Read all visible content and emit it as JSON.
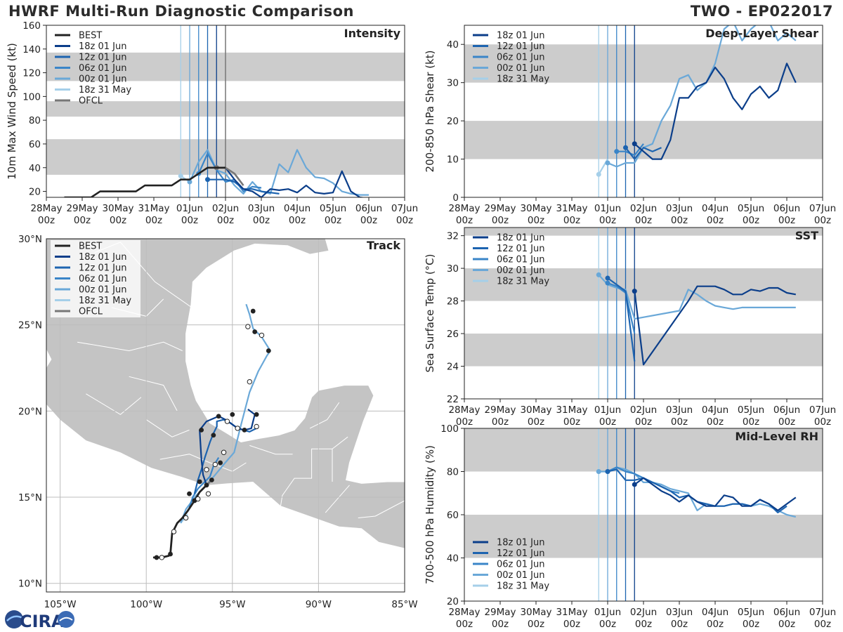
{
  "title_left": "HWRF Multi-Run Diagnostic Comparison",
  "title_right": "TWO - EP022017",
  "logo_text": "CIRA",
  "colors": {
    "best": "#222222",
    "ofcl": "#777777",
    "run_18z_01jun": "#0b3e8a",
    "run_12z_01jun": "#1d64b0",
    "run_06z_01jun": "#3a85c8",
    "run_00z_01jun": "#6aa8d8",
    "run_18z_31may": "#a5cfe9",
    "band": "#cccccc",
    "land": "#c4c4c4",
    "water": "#ffffff"
  },
  "date_ticks": [
    "28May\n00z",
    "29May\n00z",
    "30May\n00z",
    "31May\n00z",
    "01Jun\n00z",
    "02Jun\n00z",
    "03Jun\n00z",
    "04Jun\n00z",
    "05Jun\n00z",
    "06Jun\n00z",
    "07Jun\n00z"
  ],
  "run_init_days": [
    3.75,
    4.0,
    4.25,
    4.5,
    4.75
  ],
  "chart_data": [
    {
      "type": "line",
      "title": "Intensity",
      "ylabel": "10m Max Wind Speed (kt)",
      "xlabel": "",
      "ylim": [
        15,
        160
      ],
      "xlim": [
        0,
        10
      ],
      "yticks": [
        20,
        40,
        60,
        80,
        100,
        120,
        140,
        160
      ],
      "bands": [
        [
          34,
          64
        ],
        [
          83,
          96
        ],
        [
          113,
          137
        ]
      ],
      "legend": [
        "BEST",
        "18z 01 Jun",
        "12z 01 Jun",
        "06z 01 Jun",
        "00z 01 Jun",
        "18z 31 May",
        "OFCL"
      ],
      "series": [
        {
          "name": "BEST",
          "x": [
            0.5,
            0.75,
            1.0,
            1.25,
            1.5,
            1.75,
            2.0,
            2.25,
            2.5,
            2.75,
            3.0,
            3.25,
            3.5,
            3.75,
            4.0,
            4.25,
            4.5,
            4.75,
            5.0
          ],
          "y": [
            15,
            15,
            15,
            15,
            20,
            20,
            20,
            20,
            20,
            25,
            25,
            25,
            25,
            30,
            30,
            35,
            40,
            40,
            40
          ]
        },
        {
          "name": "OFCL",
          "x": [
            4.75,
            5.0,
            5.25,
            5.5
          ],
          "y": [
            40,
            40,
            35,
            25
          ]
        },
        {
          "name": "18z 01 Jun",
          "x": [
            4.75,
            5.0,
            5.25,
            5.5,
            5.75,
            6.0,
            6.25,
            6.5,
            6.75,
            7.0,
            7.25,
            7.5,
            7.75,
            8.0,
            8.25,
            8.5,
            8.75,
            9.0
          ],
          "y": [
            40,
            40,
            30,
            22,
            20,
            15,
            22,
            21,
            22,
            19,
            25,
            19,
            18,
            19,
            37,
            20,
            15,
            14
          ]
        },
        {
          "name": "12z 01 Jun",
          "x": [
            4.5,
            4.75,
            5.0,
            5.25,
            5.5,
            5.75,
            6.0,
            6.25,
            6.5
          ],
          "y": [
            30,
            30,
            30,
            28,
            22,
            22,
            20,
            19,
            18
          ]
        },
        {
          "name": "06z 01 Jun",
          "x": [
            4.25,
            4.5,
            4.75,
            5.0,
            5.25,
            5.5,
            5.75,
            6.0
          ],
          "y": [
            35,
            52,
            38,
            28,
            30,
            20,
            24,
            23
          ]
        },
        {
          "name": "00z 01 Jun",
          "x": [
            4.0,
            4.25,
            4.5,
            4.75,
            5.0,
            5.25,
            5.5,
            5.75,
            6.0,
            6.25,
            6.5,
            6.75,
            7.0,
            7.25,
            7.5,
            7.75,
            8.0,
            8.25,
            8.5,
            8.75,
            9.0
          ],
          "y": [
            28,
            45,
            55,
            38,
            35,
            25,
            18,
            28,
            20,
            18,
            43,
            36,
            55,
            40,
            32,
            31,
            27,
            20,
            18,
            17,
            17
          ]
        },
        {
          "name": "18z 31 May",
          "x": [
            3.75,
            4.0
          ],
          "y": [
            33,
            28
          ]
        }
      ]
    },
    {
      "type": "line",
      "title": "Deep-Layer Shear",
      "ylabel": "200-850 hPa Shear (kt)",
      "xlabel": "",
      "ylim": [
        0,
        45
      ],
      "xlim": [
        0,
        10
      ],
      "yticks": [
        0,
        10,
        20,
        30,
        40
      ],
      "bands": [
        [
          10,
          20
        ],
        [
          30,
          40
        ]
      ],
      "legend": [
        "18z 01 Jun",
        "12z 01 Jun",
        "06z 01 Jun",
        "00z 01 Jun",
        "18z 31 May"
      ],
      "series": [
        {
          "name": "18z 01 Jun",
          "x": [
            4.75,
            5.0,
            5.25,
            5.5,
            5.75,
            6.0,
            6.25,
            6.5,
            6.75,
            7.0,
            7.25,
            7.5,
            7.75,
            8.0,
            8.25,
            8.5,
            8.75,
            9.0,
            9.25
          ],
          "y": [
            14,
            12,
            10,
            10,
            15,
            26,
            26,
            29,
            30,
            34,
            31,
            26,
            23,
            27,
            29,
            26,
            28,
            35,
            30
          ]
        },
        {
          "name": "12z 01 Jun",
          "x": [
            4.5,
            4.75,
            5.0,
            5.25,
            5.5
          ],
          "y": [
            13,
            10,
            13,
            12,
            13
          ]
        },
        {
          "name": "06z 01 Jun",
          "x": [
            4.25,
            4.5,
            4.75,
            5.0
          ],
          "y": [
            12,
            12,
            11,
            14
          ]
        },
        {
          "name": "00z 01 Jun",
          "x": [
            4.0,
            4.25,
            4.5,
            4.75,
            5.0,
            5.25,
            5.5,
            5.75,
            6.0,
            6.25,
            6.5,
            6.75,
            7.0,
            7.25,
            7.5,
            7.75,
            8.0,
            8.25,
            8.5,
            8.75,
            9.0,
            9.25
          ],
          "y": [
            9,
            8,
            9,
            9,
            13,
            14,
            20,
            24,
            31,
            32,
            28,
            30,
            35,
            44,
            46,
            41,
            44,
            46,
            46,
            41,
            43,
            41
          ]
        },
        {
          "name": "18z 31 May",
          "x": [
            3.75,
            4.0
          ],
          "y": [
            6,
            10
          ]
        }
      ]
    },
    {
      "type": "line",
      "title": "SST",
      "ylabel": "Sea Surface Temp (°C)",
      "xlabel": "",
      "ylim": [
        22,
        32.5
      ],
      "xlim": [
        0,
        10
      ],
      "yticks": [
        22,
        24,
        26,
        28,
        30,
        32
      ],
      "bands": [
        [
          24,
          26
        ],
        [
          28,
          30
        ],
        [
          32,
          34
        ]
      ],
      "legend": [
        "18z 01 Jun",
        "12z 01 Jun",
        "06z 01 Jun",
        "00z 01 Jun",
        "18z 31 May"
      ],
      "series": [
        {
          "name": "18z 01 Jun",
          "x": [
            4.75,
            5.0,
            6.25,
            6.5,
            6.75,
            7.0,
            7.25,
            7.5,
            7.75,
            8.0,
            8.25,
            8.5,
            8.75,
            9.0,
            9.25
          ],
          "y": [
            28.6,
            24.1,
            28.0,
            28.9,
            28.9,
            28.9,
            28.7,
            28.4,
            28.4,
            28.7,
            28.6,
            28.8,
            28.8,
            28.5,
            28.4
          ]
        },
        {
          "name": "12z 01 Jun",
          "x": [
            4.0,
            4.25,
            4.5,
            4.75
          ],
          "y": [
            29.4,
            29.0,
            28.6,
            24.3
          ]
        },
        {
          "name": "06z 01 Jun",
          "x": [
            4.0,
            4.25,
            4.5,
            4.75
          ],
          "y": [
            29.1,
            28.9,
            28.5,
            26.0
          ]
        },
        {
          "name": "00z 01 Jun",
          "x": [
            3.75,
            4.0,
            4.25,
            4.5,
            4.75,
            6.0,
            6.25,
            6.5,
            6.75,
            7.0,
            7.25,
            7.5,
            7.75,
            8.0,
            8.25,
            8.5,
            8.75,
            9.0,
            9.25
          ],
          "y": [
            29.6,
            29.0,
            28.8,
            28.7,
            26.9,
            27.4,
            28.7,
            28.4,
            28.0,
            27.7,
            27.6,
            27.5,
            27.6,
            27.6,
            27.6,
            27.6,
            27.6,
            27.6,
            27.6
          ]
        },
        {
          "name": "18z 31 May",
          "x": [
            3.75
          ],
          "y": [
            29.6
          ]
        }
      ]
    },
    {
      "type": "line",
      "title": "Mid-Level RH",
      "ylabel": "700-500 hPa Humidity (%)",
      "xlabel": "",
      "ylim": [
        20,
        100
      ],
      "xlim": [
        0,
        10
      ],
      "yticks": [
        20,
        40,
        60,
        80,
        100
      ],
      "bands": [
        [
          40,
          60
        ],
        [
          80,
          100
        ]
      ],
      "legend": [
        "18z 01 Jun",
        "12z 01 Jun",
        "06z 01 Jun",
        "00z 01 Jun",
        "18z 31 May"
      ],
      "series": [
        {
          "name": "18z 01 Jun",
          "x": [
            4.75,
            5.0,
            5.25,
            5.5,
            5.75,
            6.0,
            6.25,
            6.5,
            6.75,
            7.0,
            7.25,
            7.5,
            7.75,
            8.0,
            8.25,
            8.5,
            8.75,
            9.0,
            9.25
          ],
          "y": [
            74,
            77,
            74,
            71,
            69,
            66,
            69,
            66,
            64,
            64,
            69,
            68,
            64,
            64,
            67,
            65,
            62,
            65,
            68
          ]
        },
        {
          "name": "12z 01 Jun",
          "x": [
            4.0,
            4.25,
            4.5,
            4.75,
            5.0,
            5.25,
            5.5,
            5.75,
            6.0,
            6.25,
            6.5,
            6.75,
            7.0,
            7.25,
            7.5,
            7.75,
            8.0,
            8.25,
            8.5,
            8.75,
            9.0
          ],
          "y": [
            80,
            81,
            76,
            76,
            77,
            75,
            73,
            71,
            68,
            69,
            66,
            65,
            64,
            64,
            65,
            65,
            64,
            67,
            65,
            61,
            64
          ]
        },
        {
          "name": "06z 01 Jun",
          "x": [
            4.0,
            4.25,
            4.5,
            4.75,
            5.0,
            5.25,
            5.5,
            5.75,
            6.0
          ],
          "y": [
            80,
            82,
            80,
            79,
            77,
            75,
            73,
            71,
            70
          ]
        },
        {
          "name": "00z 01 Jun",
          "x": [
            3.75,
            4.0,
            4.25,
            4.5,
            4.75,
            5.0,
            5.25,
            5.5,
            5.75,
            6.0,
            6.25,
            6.5,
            6.75,
            7.0,
            7.25,
            7.5,
            7.75,
            8.0,
            8.25,
            8.5,
            8.75,
            9.0,
            9.25
          ],
          "y": [
            80,
            80,
            82,
            81,
            79,
            75,
            75,
            74,
            72,
            71,
            70,
            62,
            65,
            64,
            64,
            65,
            65,
            64,
            65,
            64,
            62,
            60,
            59
          ]
        },
        {
          "name": "18z 31 May",
          "x": [
            3.75
          ],
          "y": [
            80
          ]
        }
      ]
    },
    {
      "type": "scatter",
      "title": "Track",
      "xlabel": "",
      "ylabel": "",
      "xlim": [
        -105.8,
        -85
      ],
      "ylim": [
        9.5,
        30
      ],
      "xticks": [
        [
          -105,
          "105°W"
        ],
        [
          -100,
          "100°W"
        ],
        [
          -95,
          "95°W"
        ],
        [
          -90,
          "90°W"
        ],
        [
          -85,
          "85°W"
        ]
      ],
      "yticks": [
        [
          10,
          "10°N"
        ],
        [
          15,
          "15°N"
        ],
        [
          20,
          "20°N"
        ],
        [
          25,
          "25°N"
        ],
        [
          30,
          "30°N"
        ]
      ],
      "legend": [
        "BEST",
        "18z 01 Jun",
        "12z 01 Jun",
        "06z 01 Jun",
        "00z 01 Jun",
        "18z 31 May",
        "OFCL"
      ],
      "series": [
        {
          "name": "BEST",
          "lon": [
            -99.6,
            -99.4,
            -99.1,
            -98.7,
            -98.6,
            -98.5,
            -98.2,
            -97.9,
            -97.6,
            -97.2,
            -96.9,
            -96.5
          ],
          "lat": [
            11.5,
            11.5,
            11.5,
            11.6,
            11.7,
            12.9,
            13.5,
            13.8,
            14.2,
            14.8,
            15.3,
            15.7
          ]
        },
        {
          "name": "OFCL",
          "lon": [
            -96.5,
            -96.3
          ],
          "lat": [
            15.7,
            15.9
          ]
        },
        {
          "name": "18z 01 Jun",
          "lon": [
            -96.5,
            -96.7,
            -96.8,
            -96.9,
            -96.5,
            -95.8,
            -95.4,
            -94.7,
            -94.3,
            -93.9,
            -93.7,
            -94.1
          ],
          "lat": [
            15.7,
            16.3,
            17.2,
            18.9,
            19.4,
            19.7,
            19.5,
            19.0,
            18.9,
            19.0,
            19.8,
            20.1
          ]
        },
        {
          "name": "12z 01 Jun",
          "lon": [
            -97.2,
            -97.0,
            -96.8,
            -96.6,
            -96.3,
            -96.1,
            -95.9,
            -95.9,
            -95.5,
            -95.1,
            -94.7,
            -94.0,
            -93.6,
            -93.6
          ],
          "lat": [
            15.2,
            16.0,
            16.6,
            17.3,
            18.2,
            18.7,
            19.1,
            19.4,
            19.5,
            19.3,
            19.0,
            18.8,
            19.0,
            19.1
          ]
        },
        {
          "name": "06z 01 Jun",
          "lon": [
            -97.5,
            -97.3,
            -97.0,
            -96.6,
            -96.3,
            -96.1,
            -95.8
          ],
          "lat": [
            14.4,
            15.0,
            15.5,
            15.9,
            16.2,
            16.8,
            17.3
          ]
        },
        {
          "name": "00z 01 Jun",
          "lon": [
            -98.0,
            -97.7,
            -97.1,
            -96.6,
            -96.0,
            -95.5,
            -94.9,
            -94.5,
            -94.0,
            -93.5,
            -93.0,
            -92.8,
            -93.3,
            -93.8,
            -94.0,
            -94.2
          ],
          "lat": [
            13.5,
            14.3,
            15.1,
            15.6,
            16.3,
            16.9,
            17.6,
            19.2,
            21.1,
            22.3,
            23.2,
            23.5,
            24.3,
            24.8,
            25.6,
            26.2
          ]
        },
        {
          "name": "18z 31 May",
          "lon": [
            -98.0,
            -97.6
          ],
          "lat": [
            13.5,
            14.0
          ]
        }
      ],
      "markers_filled": [
        [
          -99.4,
          11.5
        ],
        [
          -98.6,
          11.7
        ],
        [
          -97.2,
          14.8
        ],
        [
          -96.9,
          15.9
        ],
        [
          -96.2,
          16.0
        ],
        [
          -96.5,
          15.7
        ],
        [
          -97.5,
          15.2
        ],
        [
          -95.7,
          17.0
        ],
        [
          -96.1,
          18.6
        ],
        [
          -96.8,
          18.9
        ],
        [
          -95.8,
          19.7
        ],
        [
          -95.0,
          19.8
        ],
        [
          -94.3,
          18.9
        ],
        [
          -93.6,
          19.8
        ],
        [
          -93.7,
          24.6
        ],
        [
          -93.8,
          25.8
        ],
        [
          -92.9,
          23.5
        ]
      ],
      "markers_open": [
        [
          -99.1,
          11.5
        ],
        [
          -98.4,
          13.0
        ],
        [
          -97.7,
          13.8
        ],
        [
          -97.0,
          14.9
        ],
        [
          -96.4,
          15.2
        ],
        [
          -96.0,
          16.9
        ],
        [
          -96.5,
          16.6
        ],
        [
          -95.5,
          17.6
        ],
        [
          -94.7,
          19.0
        ],
        [
          -93.6,
          19.1
        ],
        [
          -95.3,
          19.4
        ],
        [
          -94.0,
          21.7
        ],
        [
          -93.3,
          24.4
        ],
        [
          -94.1,
          24.9
        ]
      ]
    }
  ]
}
